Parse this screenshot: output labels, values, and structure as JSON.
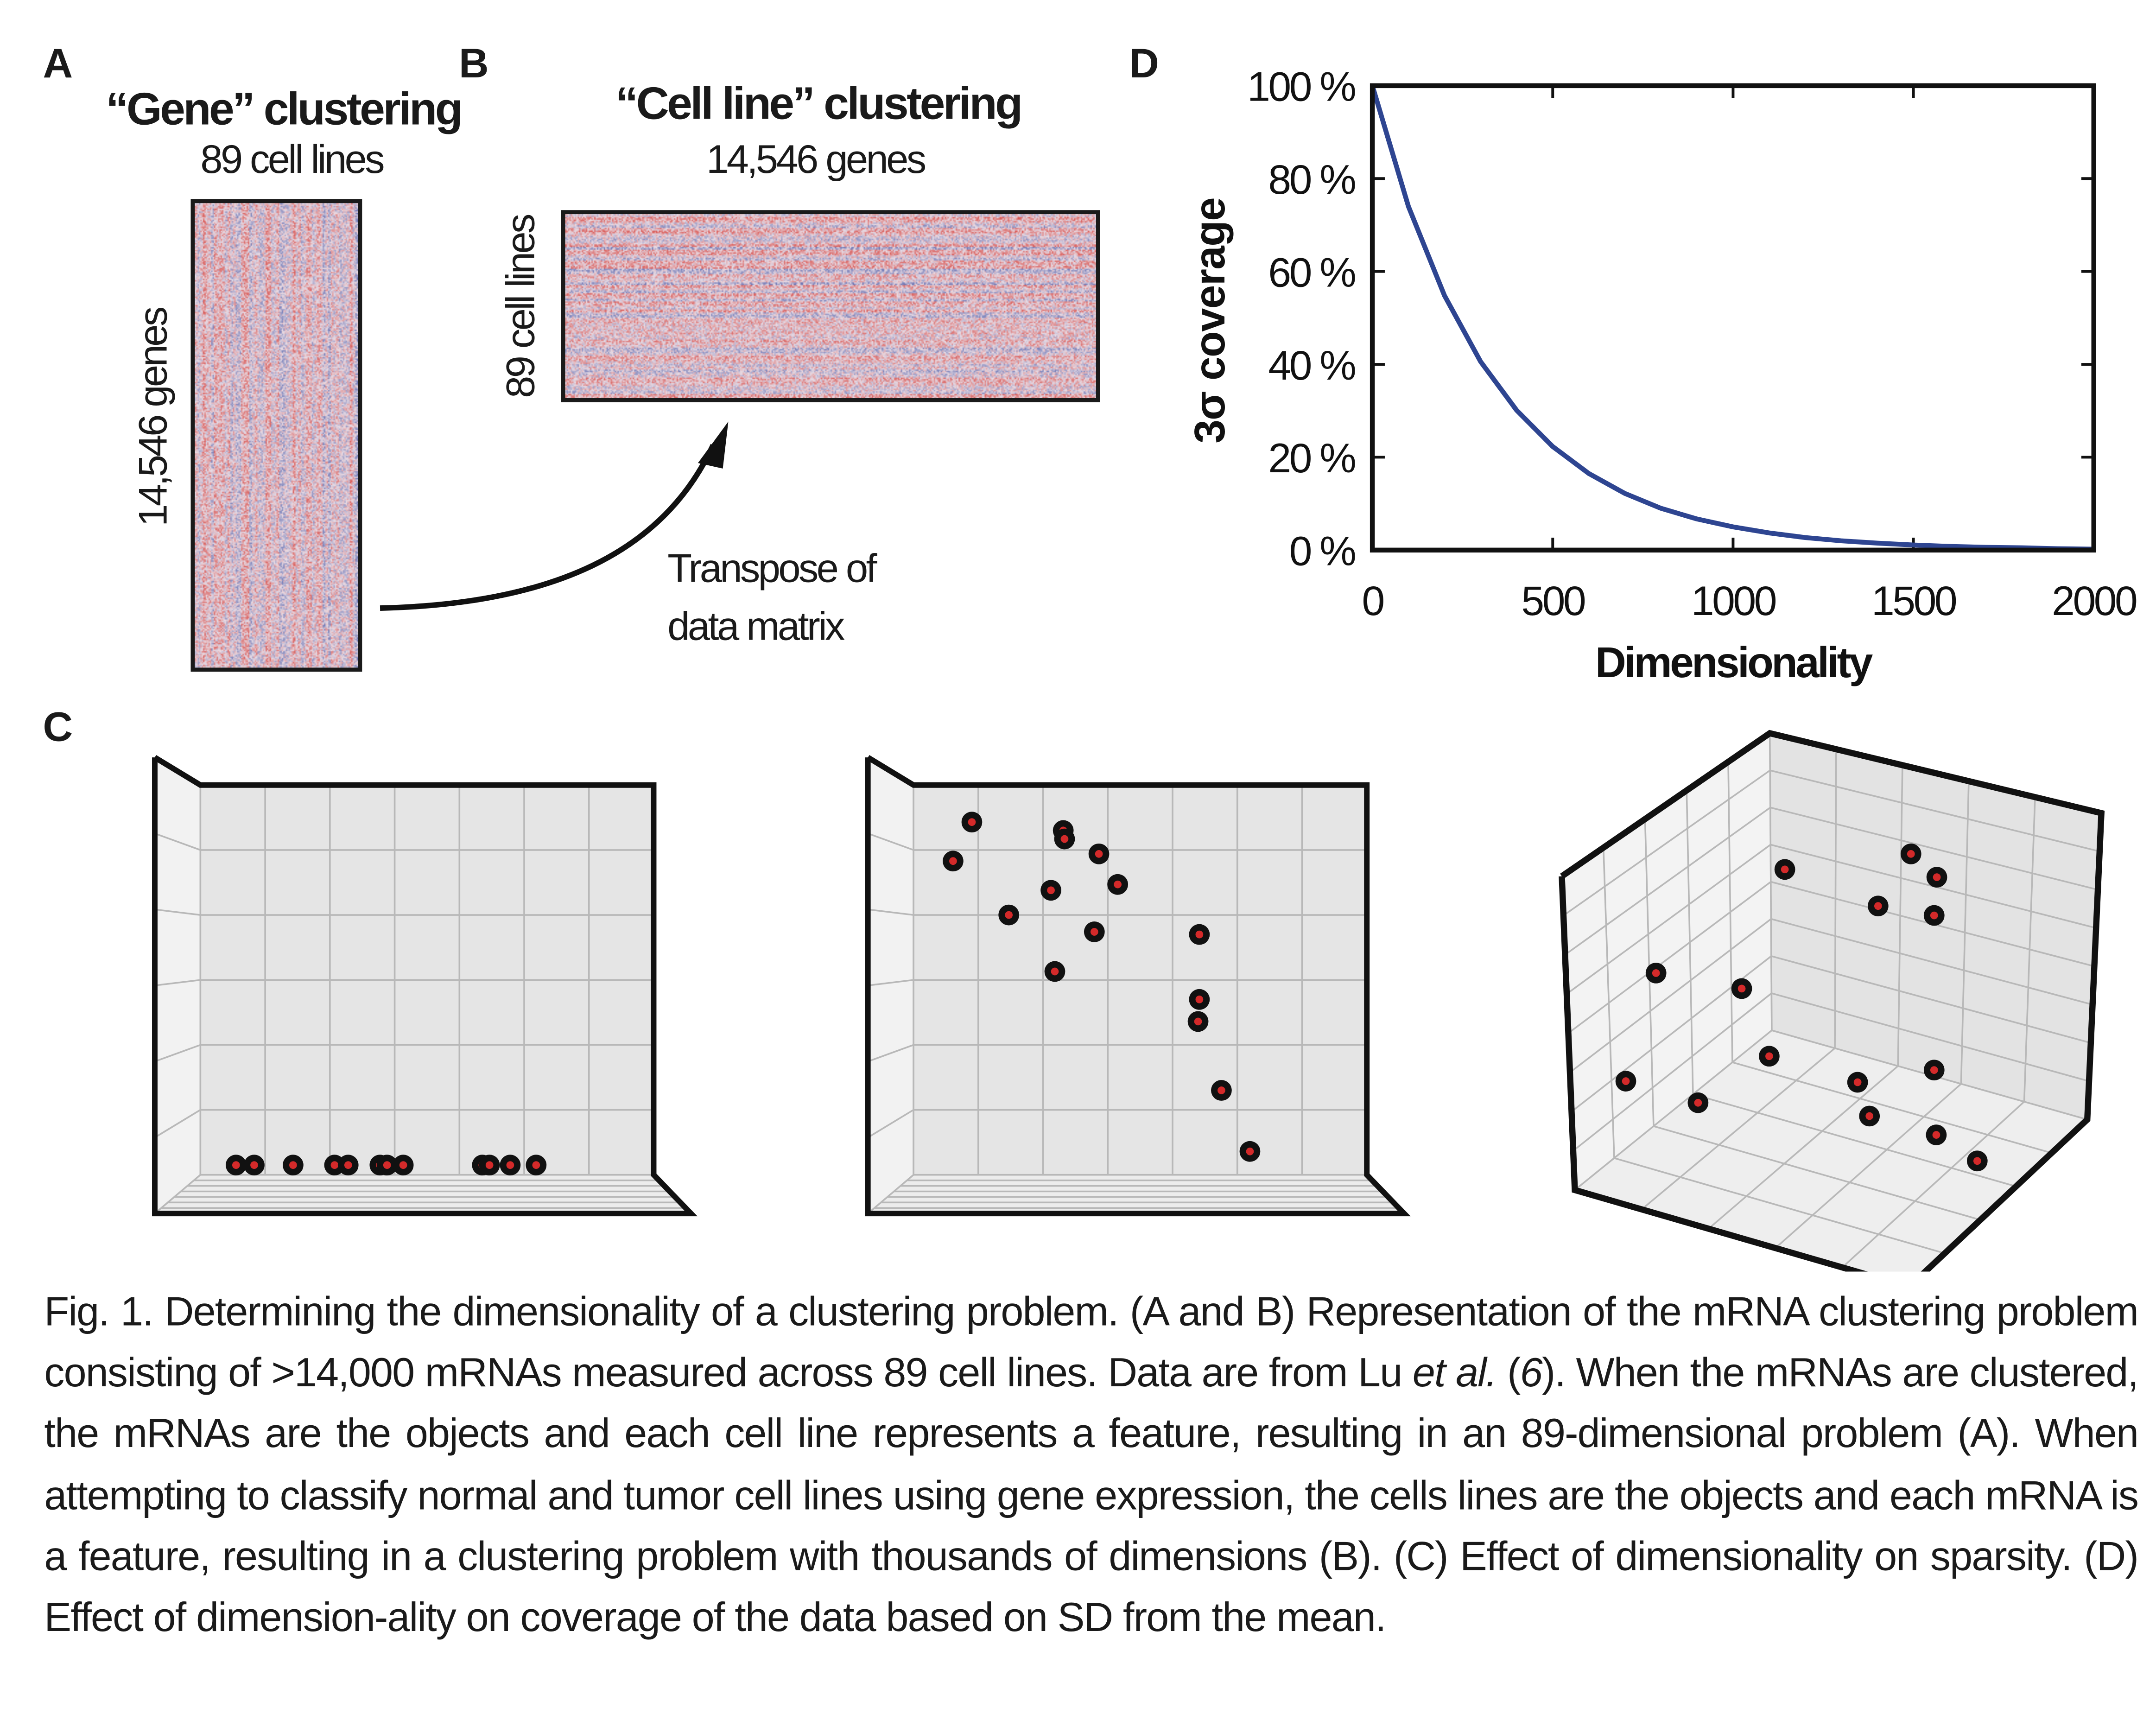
{
  "panel_labels": {
    "a": "A",
    "b": "B",
    "c": "C",
    "d": "D"
  },
  "panel_a": {
    "title": "“Gene” clustering",
    "columns_label": "89 cell lines",
    "rows_label": "14,546 genes"
  },
  "panel_b": {
    "title": "“Cell line” clustering",
    "columns_label": "14,546 genes",
    "rows_label": "89 cell lines",
    "arrow_note_line1": "Transpose of",
    "arrow_note_line2": "data matrix"
  },
  "heatmap_colors": {
    "high": "#d9534f",
    "low": "#4a5aa8",
    "mid": "#e8dbe4"
  },
  "chart_data": [
    {
      "panel": "D",
      "type": "line",
      "xlabel": "Dimensionality",
      "ylabel": "3σ coverage",
      "xlim": [
        0,
        2000
      ],
      "ylim": [
        0,
        100
      ],
      "x_ticks": [
        "0",
        "500",
        "1000",
        "1500",
        "2000"
      ],
      "y_ticks": [
        "0 %",
        "20 %",
        "40 %",
        "60 %",
        "80 %",
        "100 %"
      ],
      "grid": false,
      "line_color": "#2e4591",
      "x": [
        0,
        100,
        200,
        300,
        400,
        500,
        600,
        700,
        800,
        900,
        1000,
        1100,
        1200,
        1300,
        1400,
        1500,
        1600,
        1700,
        1800,
        1900,
        2000
      ],
      "y": [
        100,
        74.0,
        54.8,
        40.6,
        30.1,
        22.3,
        16.5,
        12.2,
        9.0,
        6.7,
        5.0,
        3.7,
        2.7,
        2.0,
        1.5,
        1.1,
        0.8,
        0.6,
        0.5,
        0.3,
        0.2
      ]
    },
    {
      "panel": "C1",
      "type": "scatter",
      "projection": "1D (points on a line)",
      "point_color": "#d42a2a",
      "points": [
        [
          0.55,
          0.15
        ],
        [
          0.83,
          0.15
        ],
        [
          1.43,
          0.15
        ],
        [
          2.07,
          0.15
        ],
        [
          2.28,
          0.15
        ],
        [
          2.77,
          0.15
        ],
        [
          2.88,
          0.15
        ],
        [
          3.13,
          0.15
        ],
        [
          4.35,
          0.15
        ],
        [
          4.46,
          0.15
        ],
        [
          4.78,
          0.15
        ],
        [
          5.18,
          0.15
        ]
      ]
    },
    {
      "panel": "C2",
      "type": "scatter",
      "projection": "2D",
      "point_color": "#d42a2a",
      "points": [
        [
          0.61,
          4.83
        ],
        [
          0.9,
          5.43
        ],
        [
          1.47,
          4.0
        ],
        [
          2.12,
          4.38
        ],
        [
          2.18,
          3.13
        ],
        [
          2.31,
          5.3
        ],
        [
          2.33,
          5.17
        ],
        [
          2.79,
          3.74
        ],
        [
          2.86,
          4.94
        ],
        [
          3.15,
          4.47
        ],
        [
          4.41,
          3.7
        ],
        [
          4.41,
          2.7
        ],
        [
          4.39,
          2.36
        ],
        [
          4.75,
          1.3
        ],
        [
          5.19,
          0.36
        ]
      ]
    },
    {
      "panel": "C3",
      "type": "scatter",
      "projection": "3D",
      "point_color": "#d42a2a",
      "points": [
        [
          4.14,
          7.53
        ],
        [
          6.48,
          7.81
        ],
        [
          6.96,
          7.39
        ],
        [
          5.87,
          6.87
        ],
        [
          6.91,
          6.7
        ],
        [
          1.75,
          5.66
        ],
        [
          3.34,
          5.38
        ],
        [
          3.85,
          4.16
        ],
        [
          1.19,
          3.71
        ],
        [
          2.53,
          3.32
        ],
        [
          5.49,
          3.69
        ],
        [
          6.91,
          3.91
        ],
        [
          5.71,
          3.08
        ],
        [
          6.95,
          2.74
        ],
        [
          7.71,
          2.27
        ]
      ]
    }
  ],
  "caption": {
    "fig": "Fig. 1.",
    "title": "Determining the dimensionality of a clustering problem.",
    "part1_open": "(",
    "ref_ab_a": "A",
    "ref_ab_and": " and ",
    "ref_ab_b": "B",
    "part1": ") Representation of the mRNA clustering problem consisting of >14,000 mRNAs measured across 89 cell lines. Data are from Lu ",
    "etal": "et al.",
    "part2_open": " (",
    "ref_num": "6",
    "part2": "). When the mRNAs are clustered, the mRNAs are the objects and each cell line represents a feature, resulting in an 89-dimensional problem (A). When attempting to classify normal and tumor cell lines using gene expression, the cells lines are the objects and each mRNA is a feature, resulting in a clustering problem with thousands of dimensions (B). (",
    "ref_c": "C",
    "part3": ") Effect of dimensionality on sparsity. (",
    "ref_d": "D",
    "part4": ") Effect of dimension-ality on coverage of the data based on SD from the mean."
  }
}
